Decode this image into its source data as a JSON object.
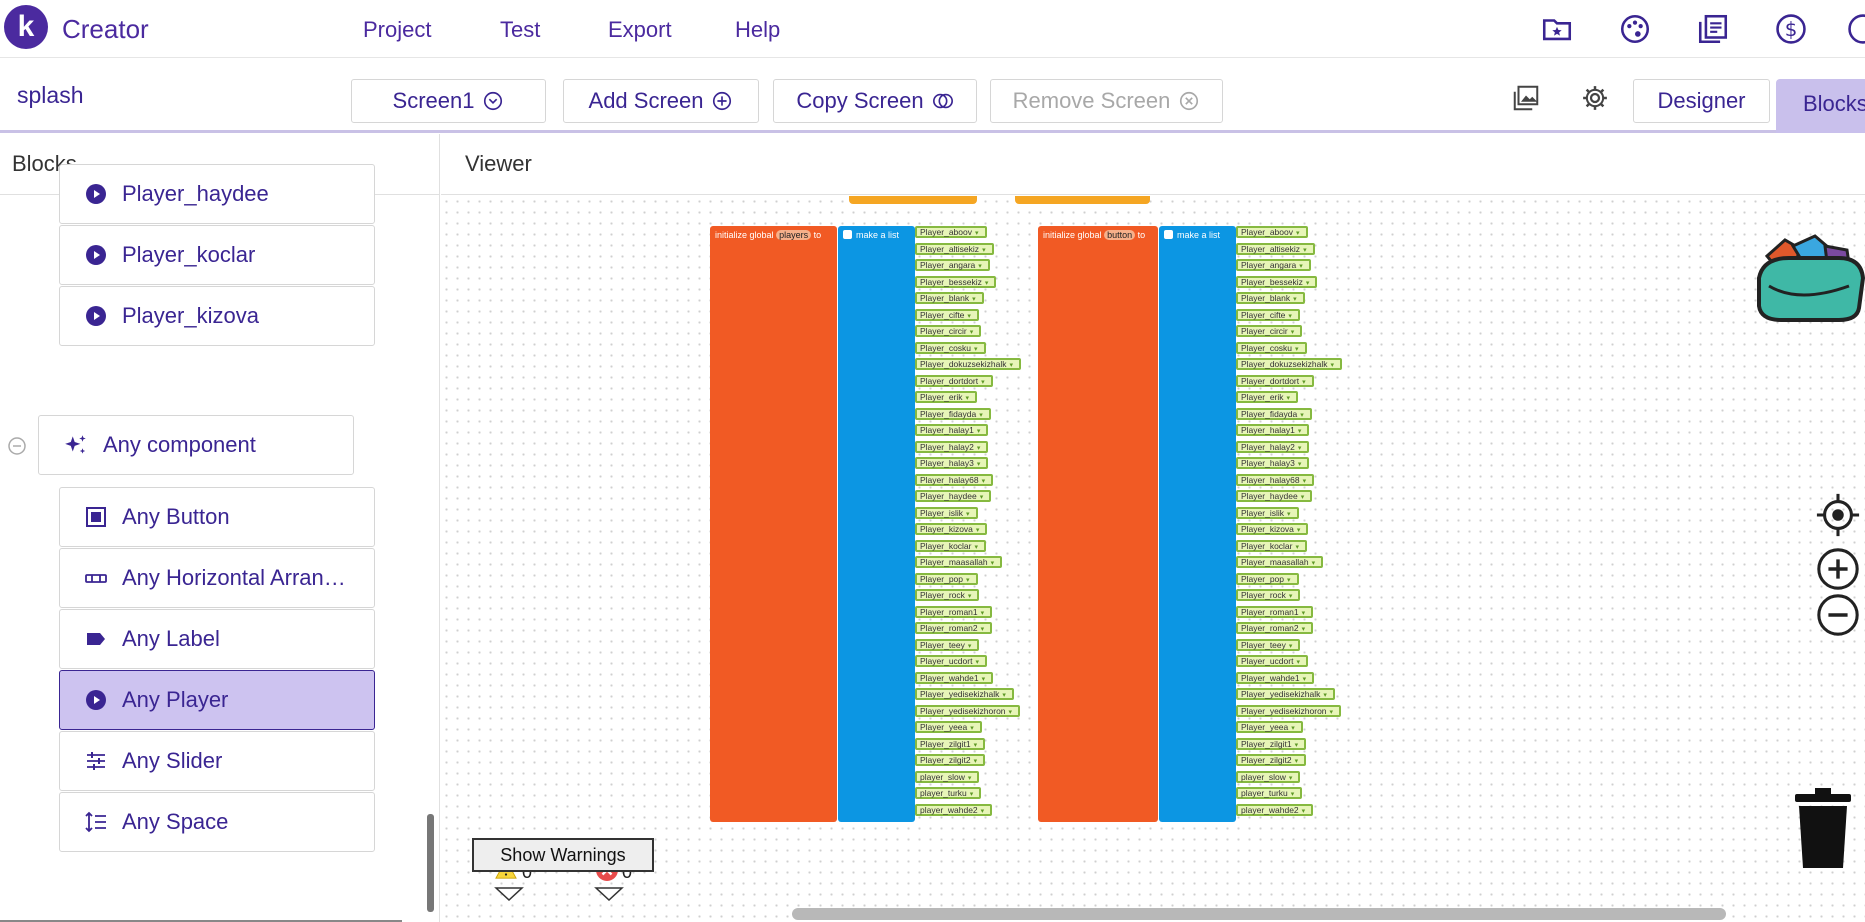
{
  "app": {
    "logo_letter": "k",
    "brand": "Creator",
    "menu": [
      "Project",
      "Test",
      "Export",
      "Help"
    ],
    "top_icons": [
      "folder-star-icon",
      "palette-icon",
      "library-icon",
      "dollar-icon",
      "more-icon"
    ]
  },
  "toolbar": {
    "project_name": "splash",
    "screen_select": "Screen1",
    "add_screen": "Add Screen",
    "copy_screen": "Copy Screen",
    "remove_screen": "Remove Screen",
    "designer": "Designer",
    "blocks": "Blocks"
  },
  "left_panel": {
    "title": "Blocks",
    "players": [
      "Player_haydee",
      "Player_koclar",
      "Player_kizova"
    ],
    "any_component": "Any component",
    "any_items": [
      {
        "label": "Any Button",
        "icon": "button-icon"
      },
      {
        "label": "Any Horizontal Arran…",
        "icon": "horizontal-arrangement-icon"
      },
      {
        "label": "Any Label",
        "icon": "label-icon"
      },
      {
        "label": "Any Player",
        "icon": "player-icon",
        "selected": true
      },
      {
        "label": "Any Slider",
        "icon": "slider-icon"
      },
      {
        "label": "Any Space",
        "icon": "space-icon"
      }
    ]
  },
  "viewer": {
    "title": "Viewer",
    "block_group_1": {
      "init": "initialize global",
      "var": "players",
      "to": "to",
      "list": "make a list"
    },
    "block_group_2": {
      "init": "initialize global",
      "var": "button",
      "to": "to",
      "list": "make a list"
    },
    "items": [
      "Player_aboov",
      "Player_altisekiz",
      "Player_angara",
      "Player_bessekiz",
      "Player_blank",
      "Player_cifte",
      "Player_circir",
      "Player_cosku",
      "Player_dokuzsekizhalk",
      "Player_dortdort",
      "Player_erik",
      "Player_fidayda",
      "Player_halay1",
      "Player_halay2",
      "Player_halay3",
      "Player_halay68",
      "Player_haydee",
      "Player_islik",
      "Player_kizova",
      "Player_koclar",
      "Player_maasallah",
      "Player_pop",
      "Player_rock",
      "Player_roman1",
      "Player_roman2",
      "Player_teey",
      "Player_ucdort",
      "Player_wahde1",
      "Player_yedisekizhalk",
      "Player_yedisekizhoron",
      "Player_yeea",
      "Player_zilgit1",
      "Player_zilgit2",
      "player_slow",
      "player_turku",
      "player_wahde2"
    ],
    "warnings_count": "0",
    "errors_count": "0",
    "show_warnings": "Show Warnings"
  }
}
